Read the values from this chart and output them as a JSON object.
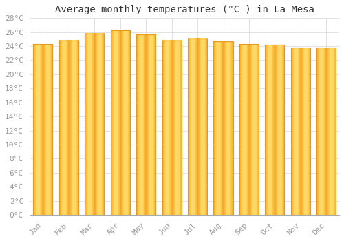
{
  "title": "Average monthly temperatures (°C ) in La Mesa",
  "months": [
    "Jan",
    "Feb",
    "Mar",
    "Apr",
    "May",
    "Jun",
    "Jul",
    "Aug",
    "Sep",
    "Oct",
    "Nov",
    "Dec"
  ],
  "values": [
    24.3,
    24.8,
    25.8,
    26.3,
    25.7,
    24.8,
    25.1,
    24.7,
    24.3,
    24.2,
    23.8,
    23.8
  ],
  "bar_color_center": "#FFD966",
  "bar_color_edge": "#F5A623",
  "bar_border_color": "#E8981A",
  "background_color": "#FFFFFF",
  "grid_color": "#DDDDDD",
  "ylim": [
    0,
    28
  ],
  "ytick_step": 2,
  "title_fontsize": 10,
  "tick_fontsize": 8,
  "tick_font_color": "#999999",
  "bar_width": 0.75
}
